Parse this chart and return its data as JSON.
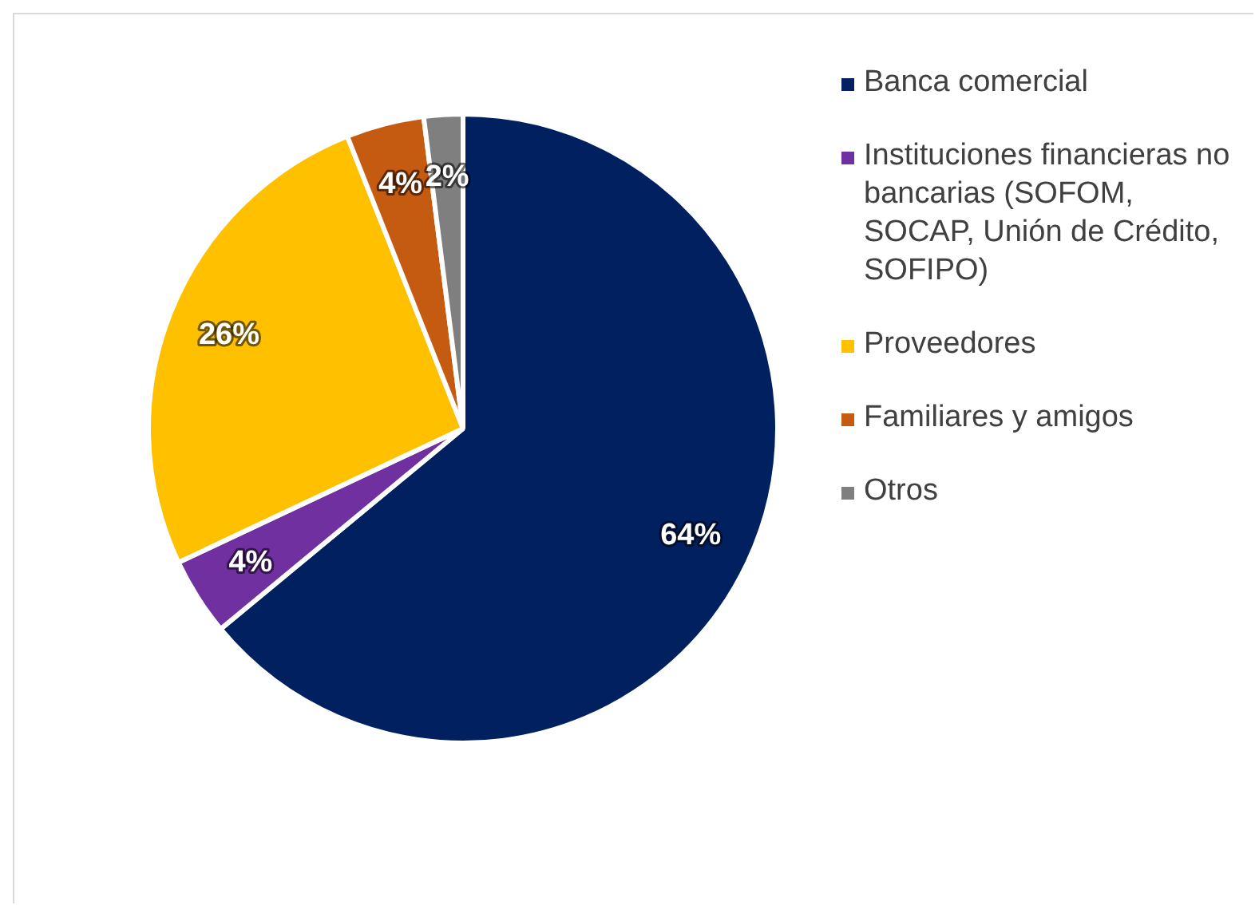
{
  "chart_data": {
    "type": "pie",
    "categories": [
      "Banca comercial",
      "Instituciones financieras no bancarias (SOFOM, SOCAP, Unión de Crédito, SOFIPO)",
      "Proveedores",
      "Familiares y amigos",
      "Otros"
    ],
    "values": [
      64,
      4,
      26,
      4,
      2
    ],
    "colors": [
      "#002060",
      "#7030a0",
      "#ffc000",
      "#c55a11",
      "#7f7f7f"
    ],
    "value_labels": [
      "64%",
      "4%",
      "26%",
      "4%",
      "2%"
    ],
    "legend": "right"
  }
}
